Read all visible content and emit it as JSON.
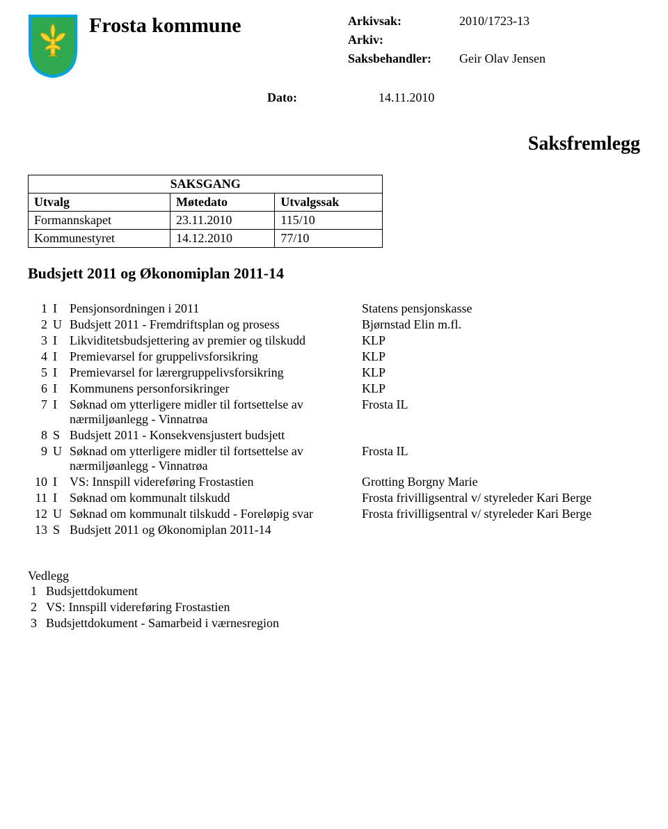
{
  "header": {
    "kommune": "Frosta kommune",
    "arkivsak_label": "Arkivsak:",
    "arkivsak_value": "2010/1723-13",
    "arkiv_label": "Arkiv:",
    "arkiv_value": "",
    "saksbehandler_label": "Saksbehandler:",
    "saksbehandler_value": "Geir Olav Jensen",
    "dato_label": "Dato:",
    "dato_value": "14.11.2010",
    "coat_colors": {
      "shield_fill": "#2fa84f",
      "shield_border": "#00a2e8",
      "fleur": "#ffd428"
    }
  },
  "saksfremlegg": "Saksfremlegg",
  "saksgang": {
    "title": "SAKSGANG",
    "cols": {
      "utvalg": "Utvalg",
      "motedato": "Møtedato",
      "utvalgssak": "Utvalgssak"
    },
    "rows": [
      {
        "utvalg": "Formannskapet",
        "motedato": "23.11.2010",
        "utvalgssak": "115/10"
      },
      {
        "utvalg": "Kommunestyret",
        "motedato": "14.12.2010",
        "utvalgssak": "77/10"
      }
    ]
  },
  "section_title": "Budsjett 2011 og Økonomiplan 2011-14",
  "attachments": [
    {
      "n": "1",
      "k": "I",
      "title": "Pensjonsordningen i 2011",
      "from": "Statens pensjonskasse"
    },
    {
      "n": "2",
      "k": "U",
      "title": "Budsjett 2011 - Fremdriftsplan og prosess",
      "from": "Bjørnstad Elin m.fl."
    },
    {
      "n": "3",
      "k": "I",
      "title": "Likviditetsbudsjettering av premier og tilskudd",
      "from": "KLP"
    },
    {
      "n": "4",
      "k": "I",
      "title": "Premievarsel for gruppelivsforsikring",
      "from": "KLP"
    },
    {
      "n": "5",
      "k": "I",
      "title": "Premievarsel for lærergruppelivsforsikring",
      "from": "KLP"
    },
    {
      "n": "6",
      "k": "I",
      "title": "Kommunens personforsikringer",
      "from": "KLP"
    },
    {
      "n": "7",
      "k": "I",
      "title": "Søknad om ytterligere midler til fortsettelse av nærmiljøanlegg - Vinnatrøa",
      "from": "Frosta IL"
    },
    {
      "n": "8",
      "k": "S",
      "title": "Budsjett 2011 - Konsekvensjustert budsjett",
      "from": ""
    },
    {
      "n": "9",
      "k": "U",
      "title": "Søknad om ytterligere midler til fortsettelse av nærmiljøanlegg - Vinnatrøa",
      "from": "Frosta IL"
    },
    {
      "n": "10",
      "k": "I",
      "title": "VS: Innspill videreføring Frostastien",
      "from": "Grotting Borgny Marie"
    },
    {
      "n": "11",
      "k": "I",
      "title": "Søknad om kommunalt tilskudd",
      "from": "Frosta frivilligsentral v/ styreleder Kari Berge"
    },
    {
      "n": "12",
      "k": "U",
      "title": "Søknad om kommunalt tilskudd  - Foreløpig svar",
      "from": "Frosta frivilligsentral v/ styreleder Kari Berge"
    },
    {
      "n": "13",
      "k": "S",
      "title": "Budsjett 2011 og Økonomiplan 2011-14",
      "from": ""
    }
  ],
  "vedlegg": {
    "title": "Vedlegg",
    "items": [
      {
        "n": "1",
        "title": "Budsjettdokument"
      },
      {
        "n": "2",
        "title": "VS: Innspill videreføring Frostastien"
      },
      {
        "n": "3",
        "title": "Budsjettdokument - Samarbeid i værnesregion"
      }
    ]
  }
}
